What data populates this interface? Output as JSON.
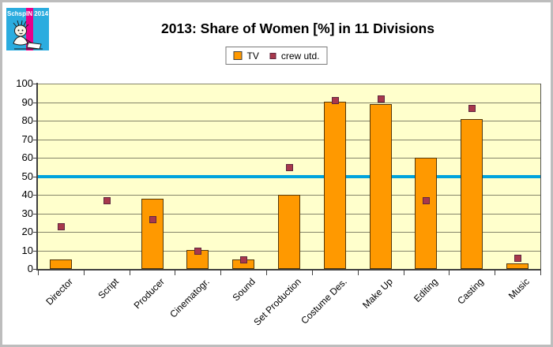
{
  "frame": {
    "border_color": "#bdbdbd",
    "background": "#ffffff"
  },
  "logo": {
    "text": "SchspIN 2014",
    "background": "#2bacdf",
    "stripe_color": "#e8008a",
    "figure": "sketch-person-icon"
  },
  "legend": {
    "items": [
      {
        "label": "TV"
      },
      {
        "label": "crew utd."
      }
    ]
  },
  "chart_data": {
    "type": "bar",
    "title": "2013: Share of Women [%] in 11 Divisions",
    "categories": [
      "Director",
      "Script",
      "Producer",
      "Cinematogr.",
      "Sound",
      "Set Production",
      "Costume Des.",
      "Make Up",
      "Editing",
      "Casting",
      "Music"
    ],
    "series": [
      {
        "name": "TV",
        "type": "bar",
        "color": "#ff9900",
        "border_color": "#54380a",
        "values": [
          5,
          0,
          38,
          10,
          5,
          40,
          90,
          89,
          60,
          81,
          3
        ]
      },
      {
        "name": "crew utd.",
        "type": "scatter",
        "marker": "square",
        "color": "#a8384c",
        "border_color": "#5f2740",
        "values": [
          23,
          37,
          27,
          10,
          5,
          55,
          91,
          92,
          37,
          87,
          6
        ]
      }
    ],
    "xlabel": "",
    "ylabel": "",
    "ylim": [
      0,
      100
    ],
    "yticks": [
      0,
      10,
      20,
      30,
      40,
      50,
      60,
      70,
      80,
      90,
      100
    ],
    "reference_line": {
      "value": 50,
      "color": "#00a3dd"
    },
    "plot_background": "#ffffcc",
    "gridline_color": "#85856a",
    "axis_color": "#404040",
    "grid": true,
    "legend_position": "top"
  }
}
